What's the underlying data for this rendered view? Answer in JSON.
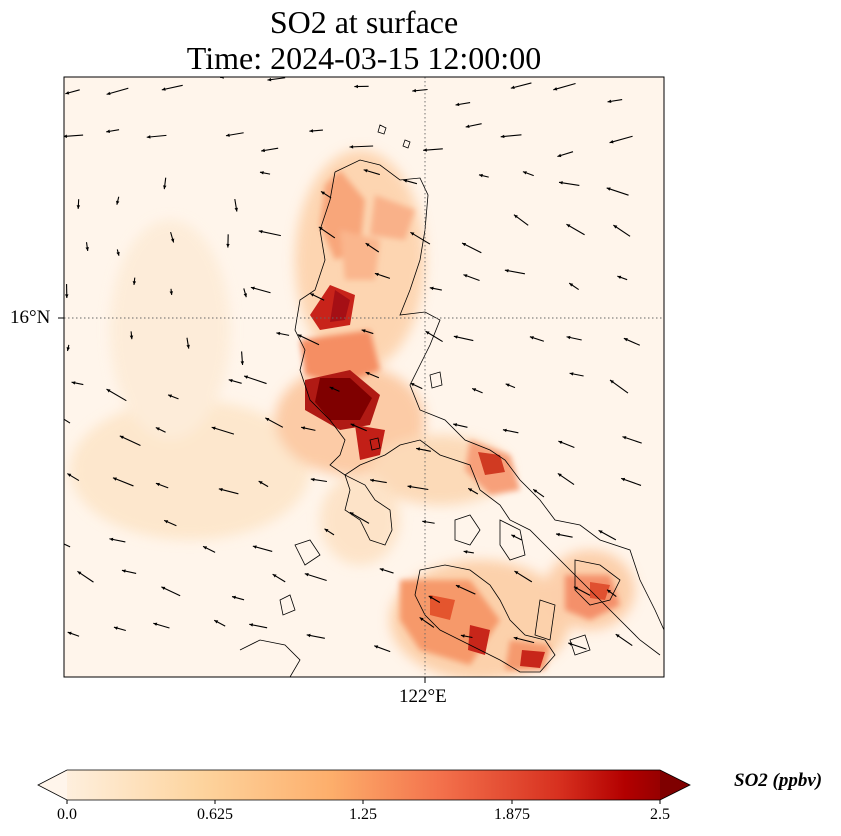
{
  "title": {
    "line1": "SO2 at surface",
    "line2": "Time: 2024-03-15 12:00:00"
  },
  "axes": {
    "lat_label": "16°N",
    "lon_label": "122°E"
  },
  "colorbar": {
    "units_label": "SO2 (ppbv)",
    "ticks": [
      "0.0",
      "0.625",
      "1.25",
      "1.875",
      "2.5"
    ],
    "min": 0.0,
    "max": 2.5,
    "colormap": [
      "#fff5eb",
      "#fdd0a2",
      "#fdae6b",
      "#f16913",
      "#d94801",
      "#a50f15",
      "#7f0000"
    ]
  },
  "map": {
    "land_outline_color": "#000000",
    "gridline_color": "#666666",
    "background_color": "#fff5eb"
  }
}
